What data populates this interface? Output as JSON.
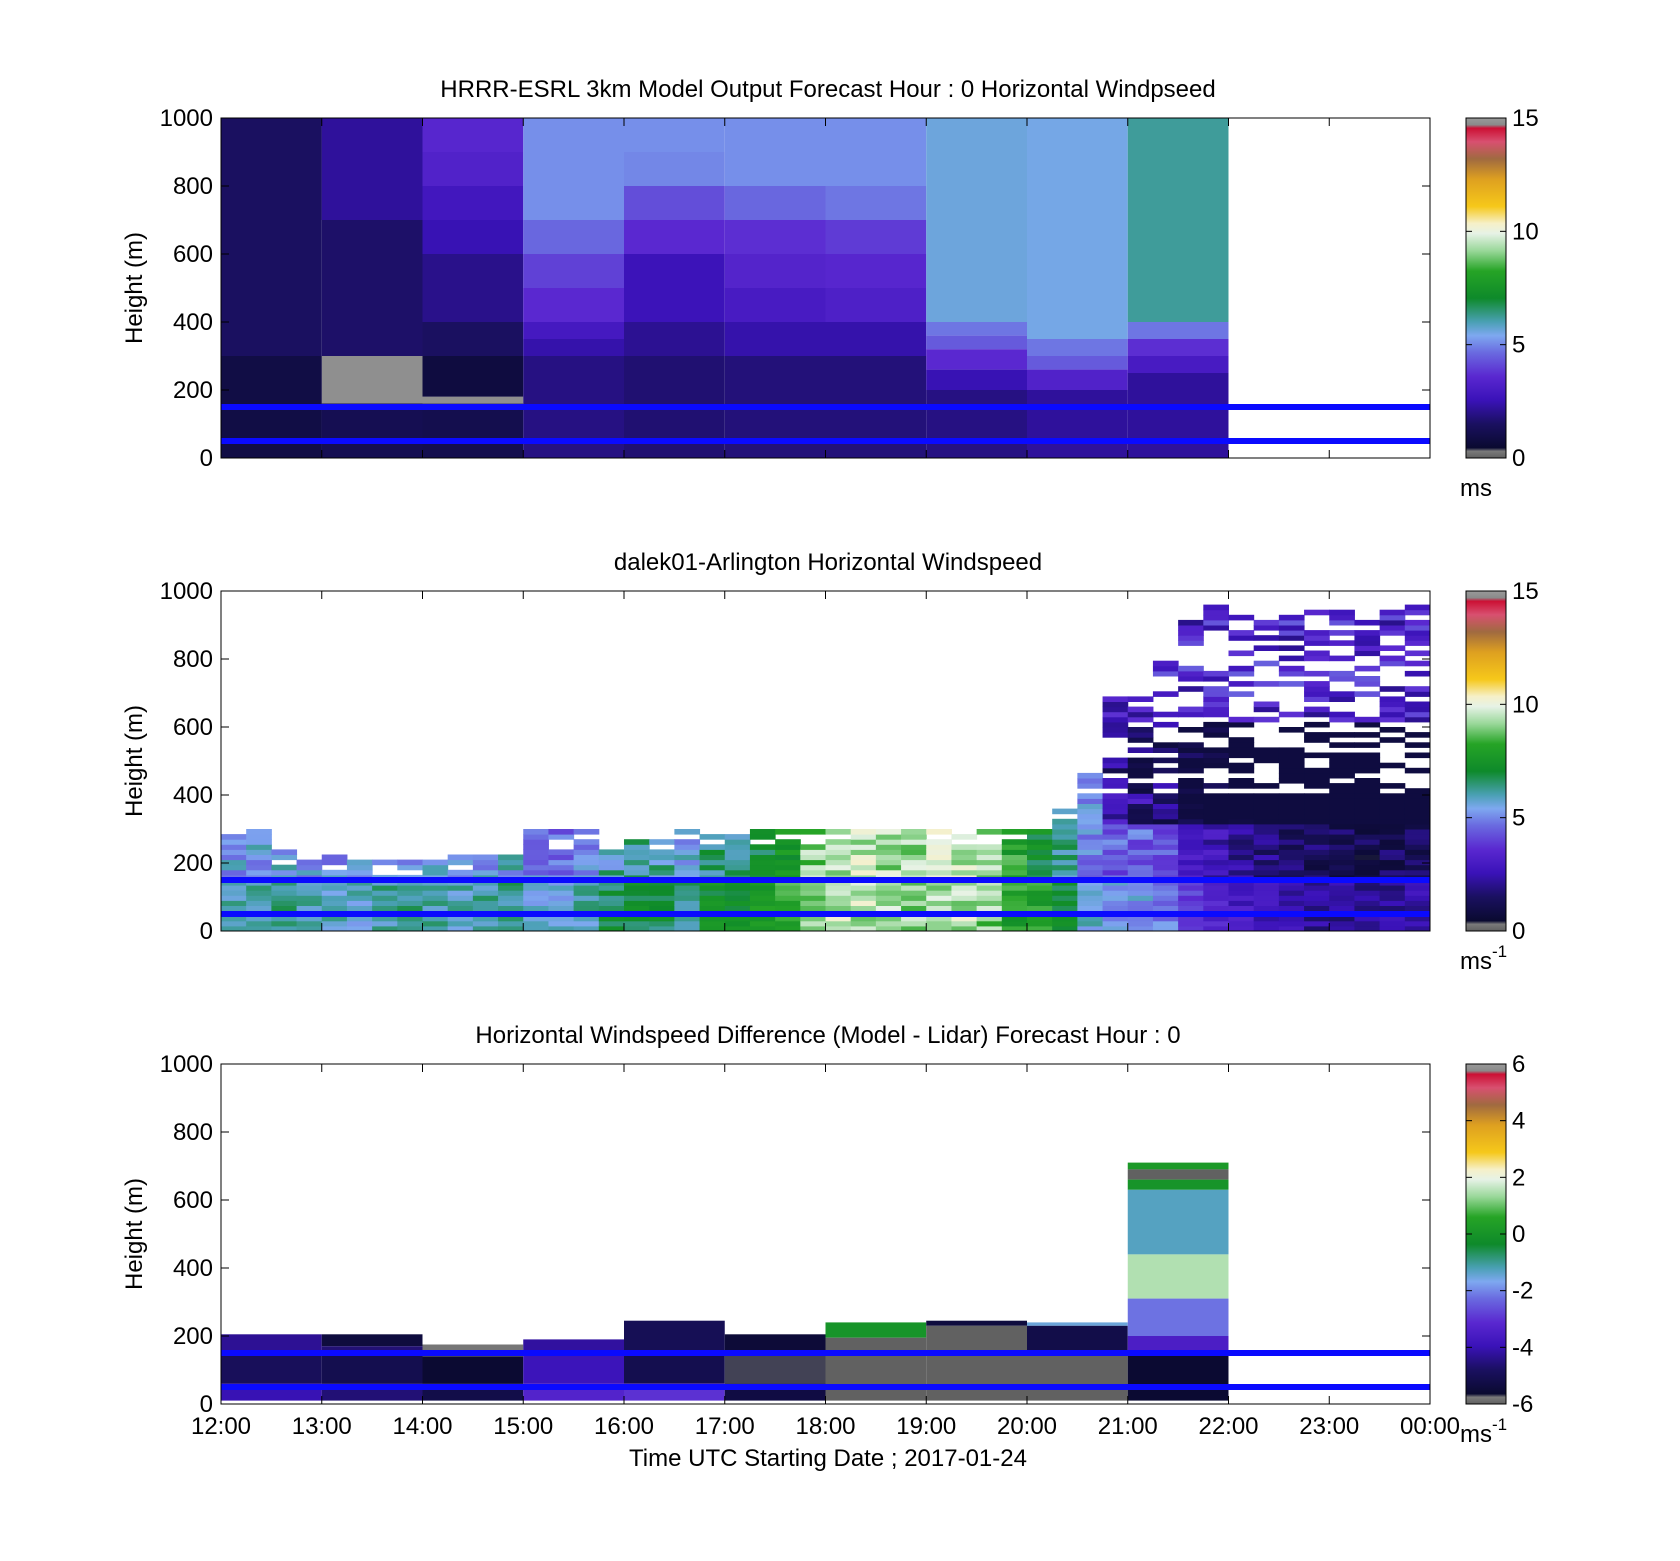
{
  "chart_data": [
    {
      "type": "heatmap",
      "title": "HRRR-ESRL 3km Model Output   Forecast Hour : 0 Horizontal Windpseed",
      "ylabel": "Height (m)",
      "xlabel": "",
      "ylim": [
        0,
        1000
      ],
      "yticks": [
        "0",
        "200",
        "400",
        "600",
        "800",
        "1000"
      ],
      "x_ticks": 12,
      "colorbar": {
        "min": 0,
        "max": 15,
        "ticks": [
          "0",
          "5",
          "10",
          "15"
        ],
        "unit": "ms",
        "unit_sup": ""
      },
      "hlines_m": [
        50,
        150
      ],
      "hline_color": "#0a0aff",
      "blocks": [
        {
          "x0": 0,
          "x1": 1,
          "y0": 0,
          "y1": 1000,
          "v": 1.5
        },
        {
          "x0": 0,
          "x1": 1,
          "y0": 0,
          "y1": 300,
          "v": 0.9
        },
        {
          "x0": 1,
          "x1": 2,
          "y0": 0,
          "y1": 1000,
          "v": 1.6
        },
        {
          "x0": 1,
          "x1": 2,
          "y0": 700,
          "y1": 1000,
          "v": 2.2
        },
        {
          "x0": 1,
          "x1": 2,
          "y0": 160,
          "y1": 300,
          "v": 14.8
        },
        {
          "x0": 1,
          "x1": 2,
          "y0": 0,
          "y1": 160,
          "v": 1.2
        },
        {
          "x0": 2,
          "x1": 3,
          "y0": 900,
          "y1": 1000,
          "v": 3.5
        },
        {
          "x0": 2,
          "x1": 3,
          "y0": 800,
          "y1": 900,
          "v": 3.3
        },
        {
          "x0": 2,
          "x1": 3,
          "y0": 700,
          "y1": 800,
          "v": 2.8
        },
        {
          "x0": 2,
          "x1": 3,
          "y0": 600,
          "y1": 700,
          "v": 2.5
        },
        {
          "x0": 2,
          "x1": 3,
          "y0": 400,
          "y1": 600,
          "v": 2.0
        },
        {
          "x0": 2,
          "x1": 3,
          "y0": 300,
          "y1": 400,
          "v": 1.5
        },
        {
          "x0": 2,
          "x1": 3,
          "y0": 180,
          "y1": 300,
          "v": 0.8
        },
        {
          "x0": 2,
          "x1": 3,
          "y0": 160,
          "y1": 180,
          "v": 14.8
        },
        {
          "x0": 2,
          "x1": 3,
          "y0": 0,
          "y1": 160,
          "v": 1.1
        },
        {
          "x0": 3,
          "x1": 4,
          "y0": 700,
          "y1": 1000,
          "v": 5.1
        },
        {
          "x0": 3,
          "x1": 4,
          "y0": 600,
          "y1": 700,
          "v": 4.6
        },
        {
          "x0": 3,
          "x1": 4,
          "y0": 500,
          "y1": 600,
          "v": 4.0
        },
        {
          "x0": 3,
          "x1": 4,
          "y0": 400,
          "y1": 500,
          "v": 3.6
        },
        {
          "x0": 3,
          "x1": 4,
          "y0": 350,
          "y1": 400,
          "v": 2.9
        },
        {
          "x0": 3,
          "x1": 4,
          "y0": 300,
          "y1": 350,
          "v": 2.4
        },
        {
          "x0": 3,
          "x1": 4,
          "y0": 0,
          "y1": 300,
          "v": 1.9
        },
        {
          "x0": 4,
          "x1": 5,
          "y0": 900,
          "y1": 1000,
          "v": 5.1
        },
        {
          "x0": 4,
          "x1": 5,
          "y0": 800,
          "y1": 900,
          "v": 5.0
        },
        {
          "x0": 4,
          "x1": 5,
          "y0": 700,
          "y1": 800,
          "v": 4.2
        },
        {
          "x0": 4,
          "x1": 5,
          "y0": 600,
          "y1": 700,
          "v": 3.6
        },
        {
          "x0": 4,
          "x1": 5,
          "y0": 400,
          "y1": 600,
          "v": 2.6
        },
        {
          "x0": 4,
          "x1": 5,
          "y0": 300,
          "y1": 400,
          "v": 2.1
        },
        {
          "x0": 4,
          "x1": 5,
          "y0": 0,
          "y1": 300,
          "v": 1.7
        },
        {
          "x0": 5,
          "x1": 6,
          "y0": 800,
          "y1": 1000,
          "v": 5.1
        },
        {
          "x0": 5,
          "x1": 6,
          "y0": 700,
          "y1": 800,
          "v": 4.6
        },
        {
          "x0": 5,
          "x1": 6,
          "y0": 600,
          "y1": 700,
          "v": 3.7
        },
        {
          "x0": 5,
          "x1": 6,
          "y0": 500,
          "y1": 600,
          "v": 3.4
        },
        {
          "x0": 5,
          "x1": 6,
          "y0": 400,
          "y1": 500,
          "v": 3.0
        },
        {
          "x0": 5,
          "x1": 6,
          "y0": 300,
          "y1": 400,
          "v": 2.4
        },
        {
          "x0": 5,
          "x1": 6,
          "y0": 0,
          "y1": 300,
          "v": 1.8
        },
        {
          "x0": 6,
          "x1": 7,
          "y0": 800,
          "y1": 1000,
          "v": 5.1
        },
        {
          "x0": 6,
          "x1": 7,
          "y0": 700,
          "y1": 800,
          "v": 4.8
        },
        {
          "x0": 6,
          "x1": 7,
          "y0": 600,
          "y1": 700,
          "v": 3.9
        },
        {
          "x0": 6,
          "x1": 7,
          "y0": 500,
          "y1": 600,
          "v": 3.5
        },
        {
          "x0": 6,
          "x1": 7,
          "y0": 400,
          "y1": 500,
          "v": 3.2
        },
        {
          "x0": 6,
          "x1": 7,
          "y0": 300,
          "y1": 400,
          "v": 2.4
        },
        {
          "x0": 6,
          "x1": 7,
          "y0": 0,
          "y1": 300,
          "v": 1.8
        },
        {
          "x0": 7,
          "x1": 8,
          "y0": 400,
          "y1": 1000,
          "v": 5.6
        },
        {
          "x0": 7,
          "x1": 8,
          "y0": 360,
          "y1": 400,
          "v": 4.8
        },
        {
          "x0": 7,
          "x1": 8,
          "y0": 320,
          "y1": 360,
          "v": 4.4
        },
        {
          "x0": 7,
          "x1": 8,
          "y0": 260,
          "y1": 320,
          "v": 3.6
        },
        {
          "x0": 7,
          "x1": 8,
          "y0": 200,
          "y1": 260,
          "v": 2.5
        },
        {
          "x0": 7,
          "x1": 8,
          "y0": 0,
          "y1": 200,
          "v": 1.9
        },
        {
          "x0": 8,
          "x1": 9,
          "y0": 350,
          "y1": 1000,
          "v": 5.5
        },
        {
          "x0": 8,
          "x1": 9,
          "y0": 300,
          "y1": 350,
          "v": 4.8
        },
        {
          "x0": 8,
          "x1": 9,
          "y0": 260,
          "y1": 300,
          "v": 4.4
        },
        {
          "x0": 8,
          "x1": 9,
          "y0": 200,
          "y1": 260,
          "v": 3.3
        },
        {
          "x0": 8,
          "x1": 9,
          "y0": 0,
          "y1": 200,
          "v": 2.2
        },
        {
          "x0": 9,
          "x1": 10,
          "y0": 400,
          "y1": 1000,
          "v": 6.2
        },
        {
          "x0": 9,
          "x1": 10,
          "y0": 350,
          "y1": 400,
          "v": 4.8
        },
        {
          "x0": 9,
          "x1": 10,
          "y0": 300,
          "y1": 350,
          "v": 3.7
        },
        {
          "x0": 9,
          "x1": 10,
          "y0": 250,
          "y1": 300,
          "v": 3.0
        },
        {
          "x0": 9,
          "x1": 10,
          "y0": 0,
          "y1": 250,
          "v": 2.2
        }
      ]
    },
    {
      "type": "heatmap",
      "title": "dalek01-Arlington  Horizontal Windspeed",
      "ylabel": "Height (m)",
      "xlabel": "",
      "ylim": [
        0,
        1000
      ],
      "yticks": [
        "0",
        "200",
        "400",
        "600",
        "800",
        "1000"
      ],
      "x_ticks": 12,
      "colorbar": {
        "min": 0,
        "max": 15,
        "ticks": [
          "0",
          "5",
          "10",
          "15"
        ],
        "unit": "ms",
        "unit_sup": "-1"
      },
      "hlines_m": [
        50,
        150
      ],
      "hline_color": "#0a0aff",
      "cols": 48,
      "col_tops": [
        290,
        290,
        240,
        220,
        220,
        210,
        220,
        220,
        220,
        220,
        220,
        230,
        290,
        290,
        290,
        270,
        270,
        270,
        300,
        300,
        300,
        300,
        300,
        300,
        300,
        300,
        300,
        300,
        300,
        300,
        300,
        300,
        300,
        360,
        460,
        720,
        760,
        790,
        940,
        950,
        940,
        940,
        940,
        950,
        950,
        940,
        950,
        950
      ],
      "col_vals": [
        5.3,
        5.4,
        5.5,
        5.4,
        5.2,
        5.0,
        5.3,
        5.5,
        5.3,
        5.1,
        5.4,
        5.6,
        5.0,
        4.8,
        5.2,
        6.0,
        6.2,
        6.0,
        5.5,
        6.5,
        6.5,
        7.0,
        7.5,
        9.0,
        9.5,
        9.5,
        9.3,
        9.2,
        9.5,
        9.5,
        9.0,
        8.0,
        7.2,
        6.2,
        5.0,
        4.5,
        4.5,
        4.2,
        3.2,
        2.6,
        2.2,
        1.9,
        1.6,
        1.4,
        1.3,
        1.2,
        1.4,
        1.5
      ]
    },
    {
      "type": "heatmap",
      "title": "Horizontal Windspeed Difference (Model - Lidar) Forecast Hour : 0",
      "ylabel": "Height (m)",
      "xlabel": "Time UTC  Starting Date ; 2017-01-24",
      "ylim": [
        0,
        1000
      ],
      "yticks": [
        "0",
        "200",
        "400",
        "600",
        "800",
        "1000"
      ],
      "xticks": [
        "12:00",
        "13:00",
        "14:00",
        "15:00",
        "16:00",
        "17:00",
        "18:00",
        "19:00",
        "20:00",
        "21:00",
        "22:00",
        "23:00",
        "00:00"
      ],
      "colorbar": {
        "min": -6,
        "max": 6,
        "ticks": [
          "-6",
          "-4",
          "-2",
          "0",
          "2",
          "4",
          "6"
        ],
        "unit": "ms",
        "unit_sup": "-1"
      },
      "hlines_m": [
        50,
        150
      ],
      "hline_color": "#0a0aff",
      "blocks": [
        {
          "x0": 0,
          "x1": 1,
          "y0": 150,
          "y1": 205,
          "v": -4.3
        },
        {
          "x0": 0,
          "x1": 1,
          "y0": 60,
          "y1": 150,
          "v": -4.9
        },
        {
          "x0": 0,
          "x1": 1,
          "y0": 10,
          "y1": 60,
          "v": -4.0
        },
        {
          "x0": 1,
          "x1": 2,
          "y0": 170,
          "y1": 205,
          "v": -5.4
        },
        {
          "x0": 1,
          "x1": 2,
          "y0": 150,
          "y1": 170,
          "v": -4.6
        },
        {
          "x0": 1,
          "x1": 2,
          "y0": 60,
          "y1": 150,
          "v": -5.1
        },
        {
          "x0": 1,
          "x1": 2,
          "y0": 10,
          "y1": 60,
          "v": -4.6
        },
        {
          "x0": 2,
          "x1": 3,
          "y0": 140,
          "y1": 175,
          "v": -5.8
        },
        {
          "x0": 2,
          "x1": 3,
          "y0": 60,
          "y1": 140,
          "v": -5.6
        },
        {
          "x0": 2,
          "x1": 3,
          "y0": 10,
          "y1": 60,
          "v": -5.2
        },
        {
          "x0": 3,
          "x1": 4,
          "y0": 150,
          "y1": 190,
          "v": -4.2
        },
        {
          "x0": 3,
          "x1": 4,
          "y0": 60,
          "y1": 150,
          "v": -3.9
        },
        {
          "x0": 3,
          "x1": 4,
          "y0": 10,
          "y1": 60,
          "v": -3.3
        },
        {
          "x0": 4,
          "x1": 5,
          "y0": 150,
          "y1": 245,
          "v": -5.0
        },
        {
          "x0": 4,
          "x1": 5,
          "y0": 60,
          "y1": 150,
          "v": -5.1
        },
        {
          "x0": 4,
          "x1": 5,
          "y0": 10,
          "y1": 60,
          "v": -3.0
        },
        {
          "x0": 5,
          "x1": 6,
          "y0": 150,
          "y1": 205,
          "v": -5.5
        },
        {
          "x0": 5,
          "x1": 6,
          "y0": 60,
          "y1": 150,
          "v": -5.7
        },
        {
          "x0": 5,
          "x1": 6,
          "y0": 10,
          "y1": 60,
          "v": -5.3
        },
        {
          "x0": 6,
          "x1": 7,
          "y0": 195,
          "y1": 240,
          "v": 0.0
        },
        {
          "x0": 6,
          "x1": 7,
          "y0": 10,
          "y1": 195,
          "v": -5.99
        },
        {
          "x0": 7,
          "x1": 8,
          "y0": 230,
          "y1": 245,
          "v": -5.4
        },
        {
          "x0": 7,
          "x1": 8,
          "y0": 10,
          "y1": 230,
          "v": -5.99
        },
        {
          "x0": 8,
          "x1": 9,
          "y0": 230,
          "y1": 240,
          "v": -1.5
        },
        {
          "x0": 8,
          "x1": 9,
          "y0": 150,
          "y1": 230,
          "v": -5.2
        },
        {
          "x0": 8,
          "x1": 9,
          "y0": 10,
          "y1": 150,
          "v": -5.99
        },
        {
          "x0": 9,
          "x1": 10,
          "y0": 690,
          "y1": 710,
          "v": 0.2
        },
        {
          "x0": 9,
          "x1": 10,
          "y0": 660,
          "y1": 690,
          "v": -5.99
        },
        {
          "x0": 9,
          "x1": 10,
          "y0": 630,
          "y1": 660,
          "v": 0.0
        },
        {
          "x0": 9,
          "x1": 10,
          "y0": 440,
          "y1": 630,
          "v": -1.3
        },
        {
          "x0": 9,
          "x1": 10,
          "y0": 310,
          "y1": 440,
          "v": 1.5
        },
        {
          "x0": 9,
          "x1": 10,
          "y0": 200,
          "y1": 310,
          "v": -2.2
        },
        {
          "x0": 9,
          "x1": 10,
          "y0": 150,
          "y1": 200,
          "v": -3.5
        },
        {
          "x0": 9,
          "x1": 10,
          "y0": 10,
          "y1": 150,
          "v": -5.6
        }
      ]
    }
  ],
  "colormap": [
    [
      0.0,
      "#606060"
    ],
    [
      0.02,
      "#7a7a7a"
    ],
    [
      0.03,
      "#0a0a30"
    ],
    [
      0.1,
      "#1a1060"
    ],
    [
      0.17,
      "#3a12b8"
    ],
    [
      0.24,
      "#5a28d0"
    ],
    [
      0.31,
      "#6a6ae0"
    ],
    [
      0.36,
      "#7ea8f0"
    ],
    [
      0.4,
      "#4aa0b4"
    ],
    [
      0.47,
      "#0e8a2a"
    ],
    [
      0.55,
      "#26a426"
    ],
    [
      0.61,
      "#9ad89a"
    ],
    [
      0.66,
      "#e6f2e6"
    ],
    [
      0.69,
      "#f6f0c8"
    ],
    [
      0.74,
      "#f6c81a"
    ],
    [
      0.82,
      "#dea020"
    ],
    [
      0.88,
      "#a06a40"
    ],
    [
      0.93,
      "#d85070"
    ],
    [
      0.97,
      "#cc1034"
    ],
    [
      0.98,
      "#8a8a8a"
    ],
    [
      1.0,
      "#9a9a9a"
    ]
  ]
}
